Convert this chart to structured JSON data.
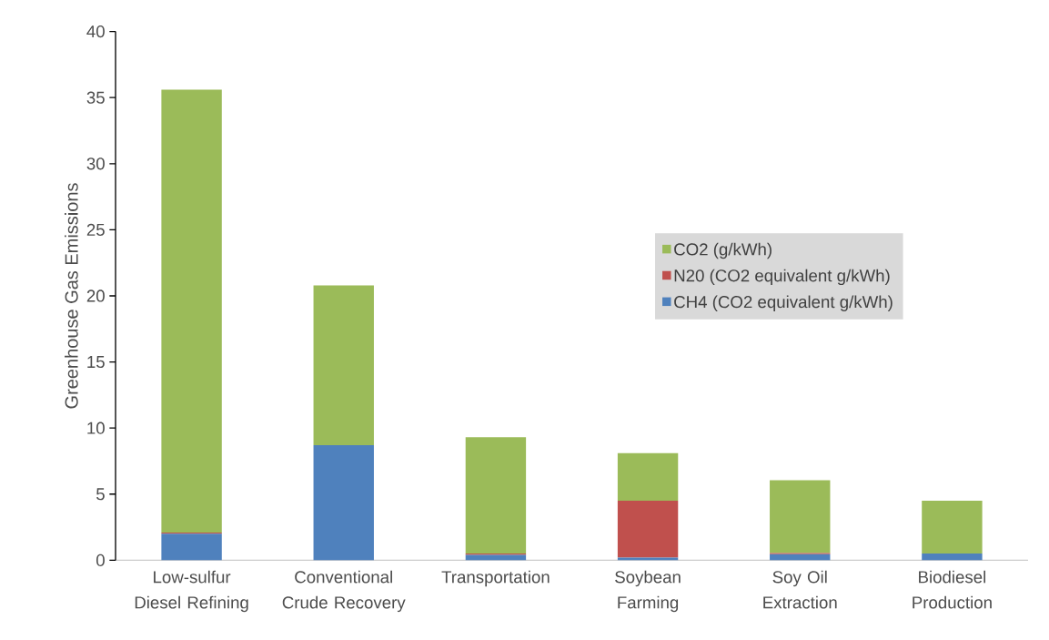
{
  "chart_data": {
    "type": "bar",
    "stacked": true,
    "ylabel": "Greenhouse Gas Emissions",
    "categories": [
      "Low-sulfur Diesel Refining",
      "Conventional Crude Recovery",
      "Transportation",
      "Soybean Farming",
      "Soy Oil Extraction",
      "Biodiesel Production"
    ],
    "series": [
      {
        "name": "CH4 (CO2 equivalent g/kWh)",
        "color": "#4f81bd",
        "values": [
          2.0,
          8.7,
          0.4,
          0.2,
          0.45,
          0.5
        ]
      },
      {
        "name": "N20 (CO2 equivalent g/kWh)",
        "color": "#c0504d",
        "values": [
          0.1,
          0,
          0.1,
          4.3,
          0.1,
          0
        ]
      },
      {
        "name": "CO2 (g/kWh)",
        "color": "#9bbb59",
        "values": [
          33.5,
          12.1,
          8.8,
          3.6,
          5.5,
          4.0
        ]
      }
    ],
    "ylim": [
      0,
      40
    ],
    "yticks": [
      0,
      5,
      10,
      15,
      20,
      25,
      30,
      35,
      40
    ],
    "grid": false,
    "legend": "right"
  }
}
